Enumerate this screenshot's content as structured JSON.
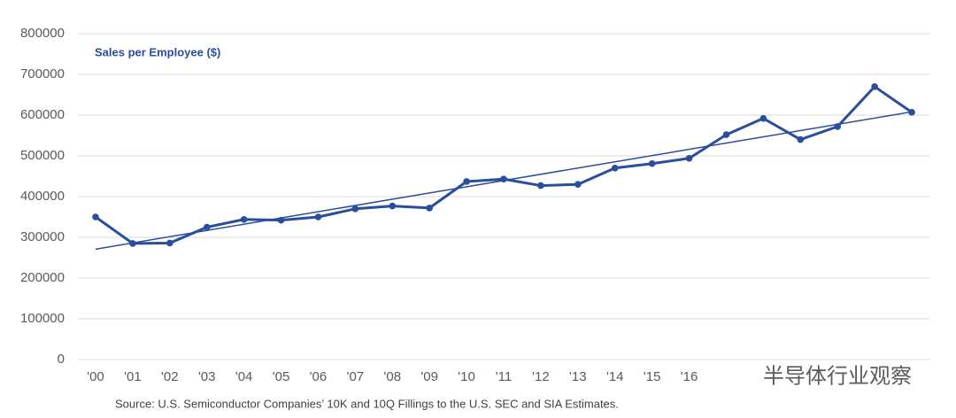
{
  "chart_data": {
    "type": "line",
    "title": "Sales per Employee ($)",
    "source": "Source: U.S. Semiconductor Companies’ 10K and 10Q Fillings to the U.S. SEC and SIA Estimates.",
    "watermark": "半导体行业观察",
    "categories": [
      "'00",
      "'01",
      "'02",
      "'03",
      "'04",
      "'05",
      "'06",
      "'07",
      "'08",
      "'09",
      "'10",
      "'11",
      "'12",
      "'13",
      "'14",
      "'15",
      "'16",
      null,
      null,
      null,
      null,
      null,
      null
    ],
    "values": [
      350000,
      285000,
      286000,
      325000,
      344000,
      342000,
      350000,
      370000,
      377000,
      372000,
      437000,
      443000,
      427000,
      430000,
      470000,
      481000,
      494000,
      552000,
      592000,
      540000,
      572000,
      670000,
      607000
    ],
    "color": "#2a4d9c",
    "trendline": {
      "values": [
        271000,
        608000
      ],
      "color": "#2a4d9c"
    },
    "ylim": [
      0,
      800000
    ],
    "yticks": [
      0,
      100000,
      200000,
      300000,
      400000,
      500000,
      600000,
      700000,
      800000
    ],
    "grid": true
  }
}
